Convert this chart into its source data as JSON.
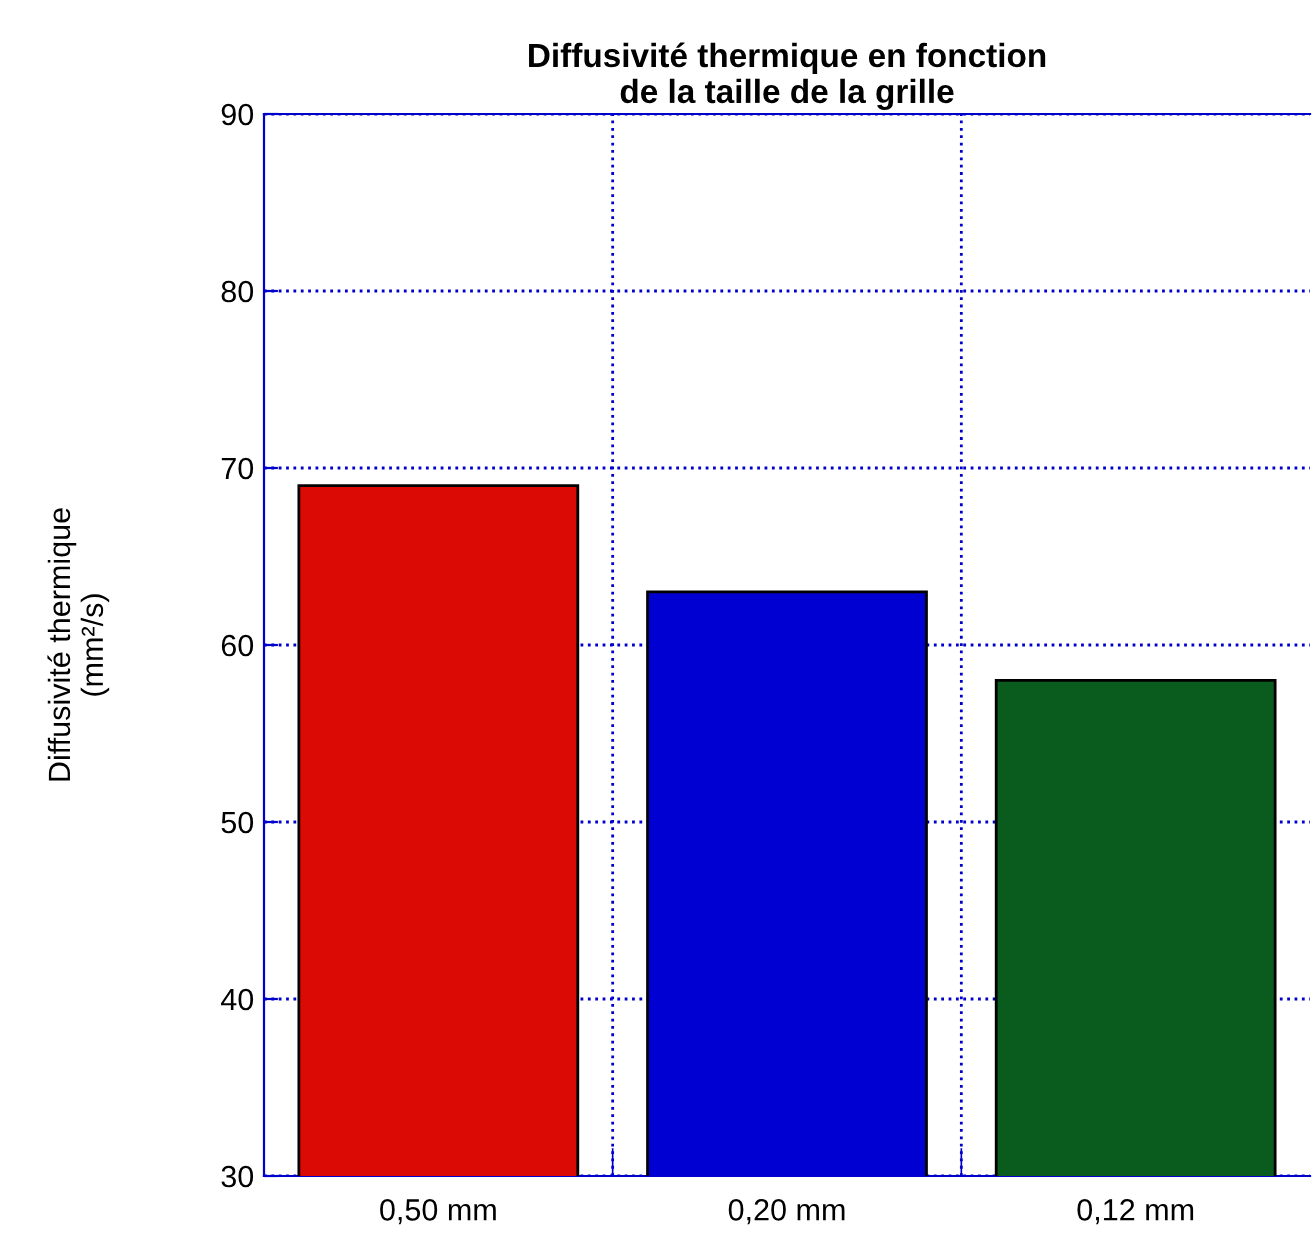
{
  "chart_data": {
    "type": "bar",
    "title": "Diffusivité thermique en fonction\nde la taille de la grille",
    "ylabel": "Diffusivité thermique\n(mm²/s)",
    "categories": [
      "0,50 mm",
      "0,20 mm",
      "0,12 mm"
    ],
    "values": [
      69,
      63,
      58
    ],
    "colors": [
      "#dc0a05",
      "#0000d2",
      "#0a5c1e"
    ],
    "ylim": [
      30,
      90
    ],
    "yticks": [
      30,
      40,
      50,
      60,
      70,
      80,
      90
    ],
    "grid": true
  }
}
